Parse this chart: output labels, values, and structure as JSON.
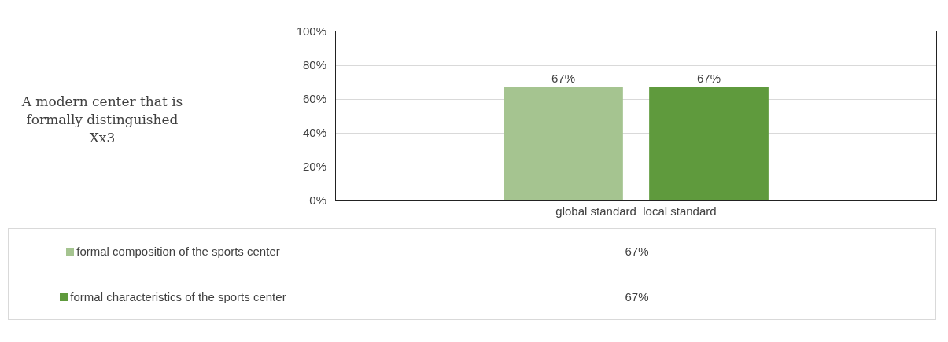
{
  "chart_data": {
    "type": "bar",
    "title": "A modern center that is formally distinguished Xx3",
    "categories": [
      "global standard  local standard"
    ],
    "series": [
      {
        "name": "formal composition of the sports center",
        "color": "#a5c490",
        "values": [
          67
        ],
        "value_labels": [
          "67%"
        ]
      },
      {
        "name": "formal characteristics of the sports center",
        "color": "#5f9a3d",
        "values": [
          67
        ],
        "value_labels": [
          "67%"
        ]
      }
    ],
    "ylim": [
      0,
      100
    ],
    "yticks": [
      {
        "value": 0,
        "label": "0%"
      },
      {
        "value": 20,
        "label": "20%"
      },
      {
        "value": 40,
        "label": "40%"
      },
      {
        "value": 60,
        "label": "60%"
      },
      {
        "value": 80,
        "label": "80%"
      },
      {
        "value": 100,
        "label": "100%"
      }
    ],
    "grid": "y",
    "legend": "bottom"
  }
}
